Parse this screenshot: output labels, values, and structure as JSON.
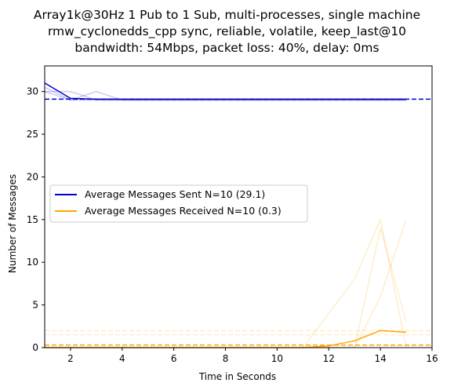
{
  "chart_data": {
    "type": "line",
    "title_lines": [
      "Array1k@30Hz 1 Pub to 1 Sub, multi-processes, single machine",
      "rmw_cyclonedds_cpp sync, reliable, volatile, keep_last@10",
      "bandwidth: 54Mbps, packet loss: 40%, delay: 0ms"
    ],
    "xlabel": "Time in Seconds",
    "ylabel": "Number of Messages",
    "xlim": [
      1,
      16
    ],
    "ylim": [
      0,
      33
    ],
    "xticks": [
      2,
      4,
      6,
      8,
      10,
      12,
      14,
      16
    ],
    "yticks": [
      0,
      5,
      10,
      15,
      20,
      25,
      30
    ],
    "grid": false,
    "legend_position": "center-left",
    "colors": {
      "sent": "#0000cc",
      "received": "#ffa500"
    },
    "series": [
      {
        "name": "Average Messages Sent N=10 (29.1)",
        "role": "sent-average",
        "x": [
          1,
          2,
          3,
          4,
          5,
          6,
          7,
          8,
          9,
          10,
          11,
          12,
          13,
          14,
          15
        ],
        "y": [
          31,
          29.2,
          29.1,
          29.1,
          29.1,
          29.1,
          29.1,
          29.1,
          29.1,
          29.1,
          29.1,
          29.1,
          29.1,
          29.1,
          29.1
        ]
      },
      {
        "name": "Average Messages Received N=10 (0.3)",
        "role": "received-average",
        "x": [
          1,
          2,
          3,
          4,
          5,
          6,
          7,
          8,
          9,
          10,
          11,
          12,
          13,
          14,
          15
        ],
        "y": [
          0,
          0,
          0,
          0,
          0,
          0,
          0,
          0,
          0,
          0,
          0,
          0.2,
          0.8,
          2,
          1.8
        ]
      },
      {
        "role": "sent-run",
        "x": [
          1,
          2,
          3,
          4,
          5,
          6,
          7,
          8,
          9,
          10,
          11,
          12,
          13,
          14,
          15
        ],
        "y": [
          30.5,
          29,
          29,
          29,
          29,
          29,
          29,
          29,
          29,
          29,
          29,
          29,
          29,
          29,
          29
        ]
      },
      {
        "role": "sent-run",
        "x": [
          1,
          2,
          3,
          4,
          5,
          6,
          7,
          8,
          9,
          10,
          11,
          12,
          13,
          14,
          15
        ],
        "y": [
          30,
          30,
          29,
          29,
          29,
          29,
          29,
          29,
          29,
          29,
          29,
          29,
          29,
          29,
          29
        ]
      },
      {
        "role": "sent-run",
        "x": [
          1,
          2,
          3,
          4,
          5,
          6,
          7,
          8,
          9,
          10,
          11,
          12,
          13,
          14,
          15
        ],
        "y": [
          30,
          29,
          30,
          29,
          29,
          29,
          29,
          29,
          29,
          29,
          29,
          29,
          29,
          29,
          29
        ]
      },
      {
        "role": "received-run",
        "x": [
          1,
          2,
          3,
          4,
          5,
          6,
          7,
          8,
          9,
          10,
          11,
          12,
          13,
          14,
          15
        ],
        "y": [
          0,
          0,
          0,
          0,
          0,
          0,
          0,
          0,
          0,
          0,
          0,
          0,
          0,
          14,
          3
        ]
      },
      {
        "role": "received-run",
        "x": [
          1,
          2,
          3,
          4,
          5,
          6,
          7,
          8,
          9,
          10,
          11,
          12,
          13,
          14,
          15
        ],
        "y": [
          0,
          0,
          0,
          0,
          0,
          0,
          0,
          0,
          0,
          0,
          0,
          4,
          8,
          15,
          0
        ]
      },
      {
        "role": "received-run",
        "x": [
          1,
          2,
          3,
          4,
          5,
          6,
          7,
          8,
          9,
          10,
          11,
          12,
          13,
          14,
          15
        ],
        "y": [
          0,
          0,
          0,
          0,
          0,
          0,
          0,
          0,
          0,
          0,
          0,
          0,
          0,
          6,
          15
        ]
      }
    ],
    "reference_lines": [
      {
        "role": "sent-mean",
        "y": 29.1,
        "style": "dashed"
      },
      {
        "role": "received-mean",
        "y": 0.3,
        "style": "dashed"
      },
      {
        "role": "received-run-mean",
        "y": 1.5,
        "style": "dashed"
      },
      {
        "role": "received-run-mean",
        "y": 2.0,
        "style": "dashed"
      }
    ]
  }
}
